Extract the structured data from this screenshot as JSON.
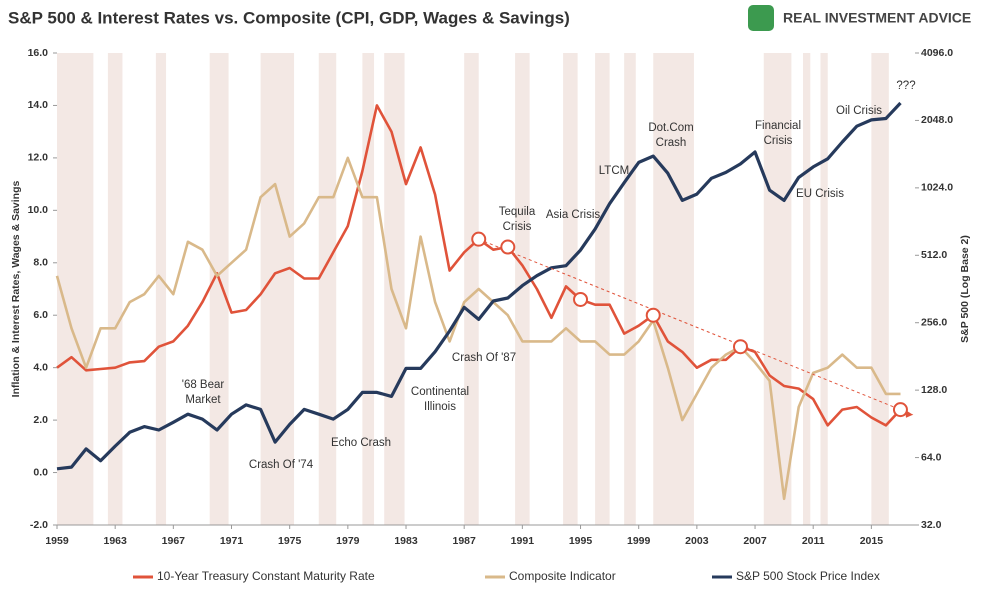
{
  "chart_data": {
    "type": "line",
    "title": "S&P 500 & Interest Rates vs. Composite (CPI, GDP, Wages & Savings)",
    "brand": "REAL INVESTMENT ADVICE",
    "y_label": "Inflation & Interest Rates, Wages & Savings",
    "y2_label": "S&P 500 (Log Base 2)",
    "x": [
      1959,
      1960,
      1961,
      1962,
      1963,
      1964,
      1965,
      1966,
      1967,
      1968,
      1969,
      1970,
      1971,
      1972,
      1973,
      1974,
      1975,
      1976,
      1977,
      1978,
      1979,
      1980,
      1981,
      1982,
      1983,
      1984,
      1985,
      1986,
      1987,
      1988,
      1989,
      1990,
      1991,
      1992,
      1993,
      1994,
      1995,
      1996,
      1997,
      1998,
      1999,
      2000,
      2001,
      2002,
      2003,
      2004,
      2005,
      2006,
      2007,
      2008,
      2009,
      2010,
      2011,
      2012,
      2013,
      2014,
      2015,
      2016,
      2017
    ],
    "series": [
      {
        "name": "10-Year Treasury Constant Maturity Rate",
        "color": "#e0533a",
        "values": [
          4.0,
          4.4,
          3.9,
          3.95,
          4.0,
          4.2,
          4.25,
          4.8,
          5.0,
          5.6,
          6.5,
          7.6,
          6.1,
          6.2,
          6.8,
          7.6,
          7.8,
          7.4,
          7.4,
          8.4,
          9.4,
          11.5,
          14.0,
          13.0,
          11.0,
          12.4,
          10.6,
          7.7,
          8.4,
          8.9,
          8.5,
          8.6,
          7.9,
          7.0,
          5.9,
          7.1,
          6.6,
          6.4,
          6.4,
          5.3,
          5.6,
          6.0,
          5.0,
          4.6,
          4.0,
          4.3,
          4.3,
          4.8,
          4.6,
          3.7,
          3.3,
          3.2,
          2.8,
          1.8,
          2.4,
          2.5,
          2.1,
          1.8,
          2.4
        ]
      },
      {
        "name": "Composite Indicator",
        "color": "#d9b98a",
        "values": [
          7.5,
          5.5,
          4.0,
          5.5,
          5.5,
          6.5,
          6.8,
          7.5,
          6.8,
          8.8,
          8.5,
          7.5,
          8.0,
          8.5,
          10.5,
          11.0,
          9.0,
          9.5,
          10.5,
          10.5,
          12.0,
          10.5,
          10.5,
          7.0,
          5.5,
          9.0,
          6.5,
          5.0,
          6.5,
          7.0,
          6.5,
          6.0,
          5.0,
          5.0,
          5.0,
          5.5,
          5.0,
          5.0,
          4.5,
          4.5,
          5.0,
          5.8,
          4.0,
          2.0,
          3.0,
          4.0,
          4.5,
          4.8,
          4.2,
          3.5,
          -1.0,
          2.5,
          3.8,
          4.0,
          4.5,
          4.0,
          4.0,
          3.0,
          3.0
        ]
      },
      {
        "name": "S&P 500 Stock Price Index",
        "color": "#263a5c",
        "axis": "y2",
        "values": [
          57,
          58,
          70,
          62,
          72,
          83,
          88,
          85,
          92,
          100,
          95,
          85,
          100,
          110,
          105,
          75,
          90,
          105,
          100,
          95,
          105,
          125,
          125,
          120,
          160,
          160,
          190,
          235,
          300,
          265,
          320,
          330,
          375,
          415,
          450,
          460,
          540,
          670,
          870,
          1080,
          1330,
          1420,
          1190,
          900,
          960,
          1130,
          1200,
          1310,
          1480,
          1000,
          900,
          1140,
          1270,
          1380,
          1640,
          1930,
          2060,
          2090,
          2450
        ]
      }
    ],
    "xlim": [
      1959,
      2018
    ],
    "xticks": [
      1959,
      1963,
      1967,
      1971,
      1975,
      1979,
      1983,
      1987,
      1991,
      1995,
      1999,
      2003,
      2007,
      2011,
      2015
    ],
    "ylim": [
      -2,
      16
    ],
    "yticks": [
      {
        "value": -2,
        "label": "-2.0"
      },
      {
        "value": 0,
        "label": "0.0"
      },
      {
        "value": 2,
        "label": "2.0"
      },
      {
        "value": 4,
        "label": "4.0"
      },
      {
        "value": 6,
        "label": "6.0"
      },
      {
        "value": 8,
        "label": "8.0"
      },
      {
        "value": 10,
        "label": "10.0"
      },
      {
        "value": 12,
        "label": "12.0"
      },
      {
        "value": 14,
        "label": "14.0"
      },
      {
        "value": 16,
        "label": "16.0"
      }
    ],
    "y2_log_base": 2,
    "y2lim": [
      32,
      4096
    ],
    "y2ticks": [
      {
        "value": 32,
        "label": "32.0"
      },
      {
        "value": 64,
        "label": "64.0"
      },
      {
        "value": 128,
        "label": "128.0"
      },
      {
        "value": 256,
        "label": "256.0"
      },
      {
        "value": 512,
        "label": "512.0"
      },
      {
        "value": 1024,
        "label": "1024.0"
      },
      {
        "value": 2048,
        "label": "2048.0"
      },
      {
        "value": 4096,
        "label": "4096.0"
      }
    ],
    "shaded_periods": [
      [
        1959,
        1961.5
      ],
      [
        1962.5,
        1963.5
      ],
      [
        1965.8,
        1966.5
      ],
      [
        1969.5,
        1970.8
      ],
      [
        1973,
        1975.3
      ],
      [
        1977,
        1978.2
      ],
      [
        1980,
        1980.8
      ],
      [
        1981.5,
        1982.9
      ],
      [
        1987,
        1988
      ],
      [
        1990.5,
        1991.5
      ],
      [
        1993.8,
        1994.8
      ],
      [
        1996,
        1997
      ],
      [
        1998,
        1998.8
      ],
      [
        2000,
        2002.8
      ],
      [
        2007.6,
        2009.5
      ],
      [
        2010.3,
        2010.8
      ],
      [
        2011.5,
        2012
      ],
      [
        2015,
        2016.2
      ]
    ],
    "shade_color": "#f3e8e4",
    "annotations": [
      [
        "'68 Bear",
        "Market"
      ],
      [
        "Crash Of '74"
      ],
      [
        "Echo Crash"
      ],
      [
        "Continental",
        "Illinois"
      ],
      [
        "Crash Of '87"
      ],
      [
        "Tequila",
        "Crisis"
      ],
      [
        "Asia Crisis"
      ],
      [
        "LTCM"
      ],
      [
        "Dot.Com",
        "Crash"
      ],
      [
        "Financial",
        "Crisis"
      ],
      [
        "EU Crisis"
      ],
      [
        "Oil Crisis"
      ],
      [
        "???"
      ]
    ]
  }
}
